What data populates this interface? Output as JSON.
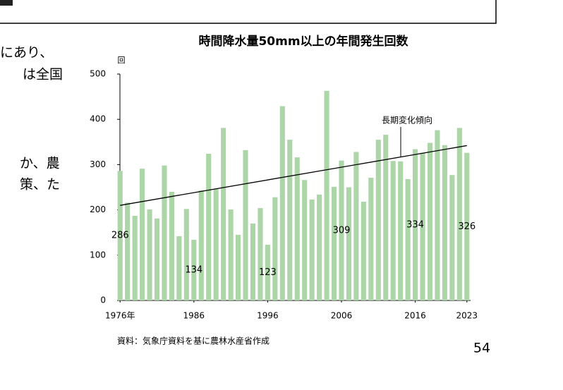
{
  "body_text": [
    "にあり、",
    "は全国",
    "か、農",
    "策、た"
  ],
  "page_number": "54",
  "chart_data": {
    "type": "bar",
    "title": "時間降水量50mm以上の年間発生回数",
    "y_unit": "回",
    "source": "資料：気象庁資料を基に農林水産省作成",
    "x": [
      1976,
      1977,
      1978,
      1979,
      1980,
      1981,
      1982,
      1983,
      1984,
      1985,
      1986,
      1987,
      1988,
      1989,
      1990,
      1991,
      1992,
      1993,
      1994,
      1995,
      1996,
      1997,
      1998,
      1999,
      2000,
      2001,
      2002,
      2003,
      2004,
      2005,
      2006,
      2007,
      2008,
      2009,
      2010,
      2011,
      2012,
      2013,
      2014,
      2015,
      2016,
      2017,
      2018,
      2019,
      2020,
      2021,
      2022,
      2023
    ],
    "values": [
      286,
      216,
      187,
      291,
      201,
      181,
      298,
      240,
      142,
      202,
      134,
      243,
      324,
      246,
      381,
      201,
      145,
      332,
      170,
      204,
      123,
      228,
      429,
      355,
      316,
      266,
      223,
      234,
      463,
      251,
      309,
      250,
      328,
      218,
      271,
      355,
      366,
      308,
      307,
      268,
      334,
      326,
      348,
      376,
      343,
      277,
      381,
      326
    ],
    "value_labels": [
      "286",
      null,
      null,
      null,
      null,
      null,
      null,
      null,
      null,
      null,
      "134",
      null,
      null,
      null,
      null,
      null,
      null,
      null,
      null,
      null,
      "123",
      null,
      null,
      null,
      null,
      null,
      null,
      null,
      null,
      null,
      "309",
      null,
      null,
      null,
      null,
      null,
      null,
      null,
      null,
      null,
      "334",
      null,
      null,
      null,
      null,
      null,
      null,
      "326"
    ],
    "color": "#acd6a8",
    "xlim": [
      1975.5,
      2023.5
    ],
    "xticks": [
      {
        "value": 1976,
        "label": "1976年"
      },
      1986,
      1996,
      2006,
      2016,
      2023
    ],
    "ylim": [
      0,
      500
    ],
    "yticks": [
      0,
      100,
      200,
      300,
      400,
      500
    ],
    "trend": {
      "name": "長期変化傾向",
      "start": 210,
      "end": 342,
      "color": "#000000"
    }
  }
}
